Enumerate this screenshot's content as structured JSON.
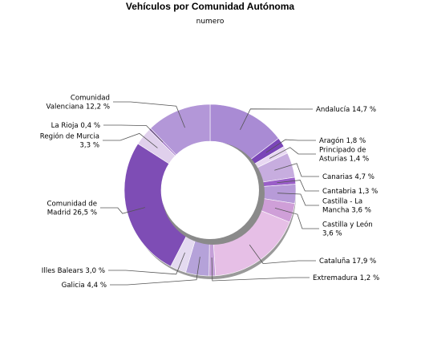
{
  "chart_data": {
    "type": "pie",
    "variant": "donut",
    "title": "Vehículos por Comunidad Autónoma",
    "subtitle": "numero",
    "unit": "%",
    "legend": "none",
    "slices": [
      {
        "label_lines": [
          "Andalucía 14,7 %"
        ],
        "name": "Andalucía",
        "value": 14.7,
        "color": "#a98bd4"
      },
      {
        "label_lines": [
          "Aragón 1,8 %"
        ],
        "name": "Aragón",
        "value": 1.8,
        "color": "#7a45b8"
      },
      {
        "label_lines": [
          "Principado de",
          "Asturias 1,4 %"
        ],
        "name": "Principado de Asturias",
        "value": 1.4,
        "color": "#e8d8f2"
      },
      {
        "label_lines": [
          "Canarias 4,7 %"
        ],
        "name": "Canarias",
        "value": 4.7,
        "color": "#c7addf"
      },
      {
        "label_lines": [
          "Cantabria 1,3 %"
        ],
        "name": "Cantabria",
        "value": 1.3,
        "color": "#9a5fc8"
      },
      {
        "label_lines": [
          "Castilla - La",
          "Mancha 3,6 %"
        ],
        "name": "Castilla - La Mancha",
        "value": 3.6,
        "color": "#b79bd8"
      },
      {
        "label_lines": [
          "Castilla y León",
          "3,6 %"
        ],
        "name": "Castilla y León",
        "value": 3.6,
        "color": "#cf9fd8"
      },
      {
        "label_lines": [
          "Cataluña 17,9 %"
        ],
        "name": "Cataluña",
        "value": 17.9,
        "color": "#e6bfe6"
      },
      {
        "label_lines": [
          "Extremadura 1,2 %"
        ],
        "name": "Extremadura",
        "value": 1.2,
        "color": "#c4a0d8"
      },
      {
        "label_lines": [
          "Galicia 4,4 %"
        ],
        "name": "Galicia",
        "value": 4.4,
        "color": "#b5a2d9"
      },
      {
        "label_lines": [
          "Illes Balears 3,0 %"
        ],
        "name": "Illes Balears",
        "value": 3.0,
        "color": "#e4daf0"
      },
      {
        "label_lines": [
          "Comunidad de",
          "Madrid 26,5 %"
        ],
        "name": "Comunidad de Madrid",
        "value": 26.5,
        "color": "#7e4db5"
      },
      {
        "label_lines": [
          "Región de Murcia",
          "3,3 %"
        ],
        "name": "Región de Murcia",
        "value": 3.3,
        "color": "#e0d0ec"
      },
      {
        "label_lines": [
          "La Rioja 0,4 %"
        ],
        "name": "La Rioja",
        "value": 0.4,
        "color": "#9b6ac6"
      },
      {
        "label_lines": [
          "Comunidad",
          "Valenciana 12,2 %"
        ],
        "name": "Comunidad Valenciana",
        "value": 12.2,
        "color": "#b397d8"
      }
    ]
  }
}
